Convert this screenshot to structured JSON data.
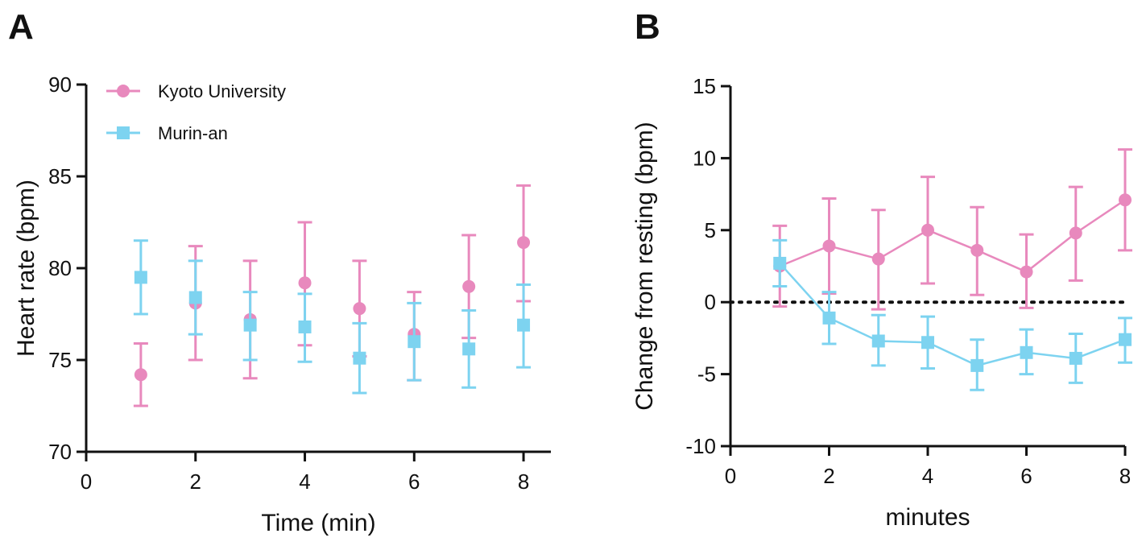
{
  "colors": {
    "pink": "#E889BD",
    "blue": "#7DD3F0",
    "axis": "#111111"
  },
  "chart_data": [
    {
      "panel": "A",
      "type": "scatter",
      "xlabel": "Time (min)",
      "ylabel": "Heart rate (bpm)",
      "xlim": [
        0,
        8.5
      ],
      "ylim": [
        70,
        90
      ],
      "xticks": [
        0,
        2,
        4,
        6,
        8
      ],
      "yticks": [
        70,
        75,
        80,
        85,
        90
      ],
      "xtick_labels": [
        "0",
        "2",
        "4",
        "6",
        "8"
      ],
      "ytick_labels": [
        "70",
        "75",
        "80",
        "85",
        "90"
      ],
      "legend_position": "top-left",
      "series": [
        {
          "name": "Kyoto University",
          "color": "#E889BD",
          "marker": "circle",
          "connect": false,
          "x": [
            1,
            2,
            3,
            4,
            5,
            6,
            7,
            8
          ],
          "y": [
            74.2,
            78.1,
            77.2,
            79.2,
            77.8,
            76.4,
            79.0,
            81.4
          ],
          "err_upper": [
            75.9,
            81.2,
            80.4,
            82.5,
            80.4,
            78.7,
            81.8,
            84.5
          ],
          "err_lower": [
            72.5,
            75.0,
            74.0,
            75.8,
            75.2,
            73.9,
            76.2,
            78.2
          ]
        },
        {
          "name": "Murin-an",
          "color": "#7DD3F0",
          "marker": "square",
          "connect": false,
          "x": [
            1,
            2,
            3,
            4,
            5,
            6,
            7,
            8
          ],
          "y": [
            79.5,
            78.4,
            76.9,
            76.8,
            75.1,
            76.0,
            75.6,
            76.9
          ],
          "err_upper": [
            81.5,
            80.4,
            78.7,
            78.6,
            77.0,
            78.1,
            77.7,
            79.1
          ],
          "err_lower": [
            77.5,
            76.4,
            75.0,
            74.9,
            73.2,
            73.9,
            73.5,
            74.6
          ]
        }
      ]
    },
    {
      "panel": "B",
      "type": "line",
      "xlabel": "minutes",
      "ylabel": "Change from resting (bpm)",
      "xlim": [
        0,
        8
      ],
      "ylim": [
        -10,
        15
      ],
      "xticks": [
        0,
        2,
        4,
        6,
        8
      ],
      "yticks": [
        -10,
        -5,
        0,
        5,
        10,
        15
      ],
      "xtick_labels": [
        "0",
        "2",
        "4",
        "6",
        "8"
      ],
      "ytick_labels": [
        "-10",
        "-5",
        "0",
        "5",
        "10",
        "15"
      ],
      "reference_line": 0,
      "series": [
        {
          "name": "Kyoto University",
          "color": "#E889BD",
          "marker": "circle",
          "connect": true,
          "x": [
            1,
            2,
            3,
            4,
            5,
            6,
            7,
            8
          ],
          "y": [
            2.5,
            3.9,
            3.0,
            5.0,
            3.6,
            2.1,
            4.8,
            7.1
          ],
          "err_upper": [
            5.3,
            7.2,
            6.4,
            8.7,
            6.6,
            4.7,
            8.0,
            10.6
          ],
          "err_lower": [
            -0.3,
            0.6,
            -0.5,
            1.3,
            0.5,
            -0.4,
            1.5,
            3.6
          ]
        },
        {
          "name": "Murin-an",
          "color": "#7DD3F0",
          "marker": "square",
          "connect": true,
          "x": [
            1,
            2,
            3,
            4,
            5,
            6,
            7,
            8
          ],
          "y": [
            2.7,
            -1.1,
            -2.7,
            -2.8,
            -4.4,
            -3.5,
            -3.9,
            -2.6
          ],
          "err_upper": [
            4.3,
            0.7,
            -0.9,
            -1.0,
            -2.6,
            -1.9,
            -2.2,
            -1.1
          ],
          "err_lower": [
            1.1,
            -2.9,
            -4.4,
            -4.6,
            -6.1,
            -5.0,
            -5.6,
            -4.2
          ]
        }
      ]
    }
  ]
}
